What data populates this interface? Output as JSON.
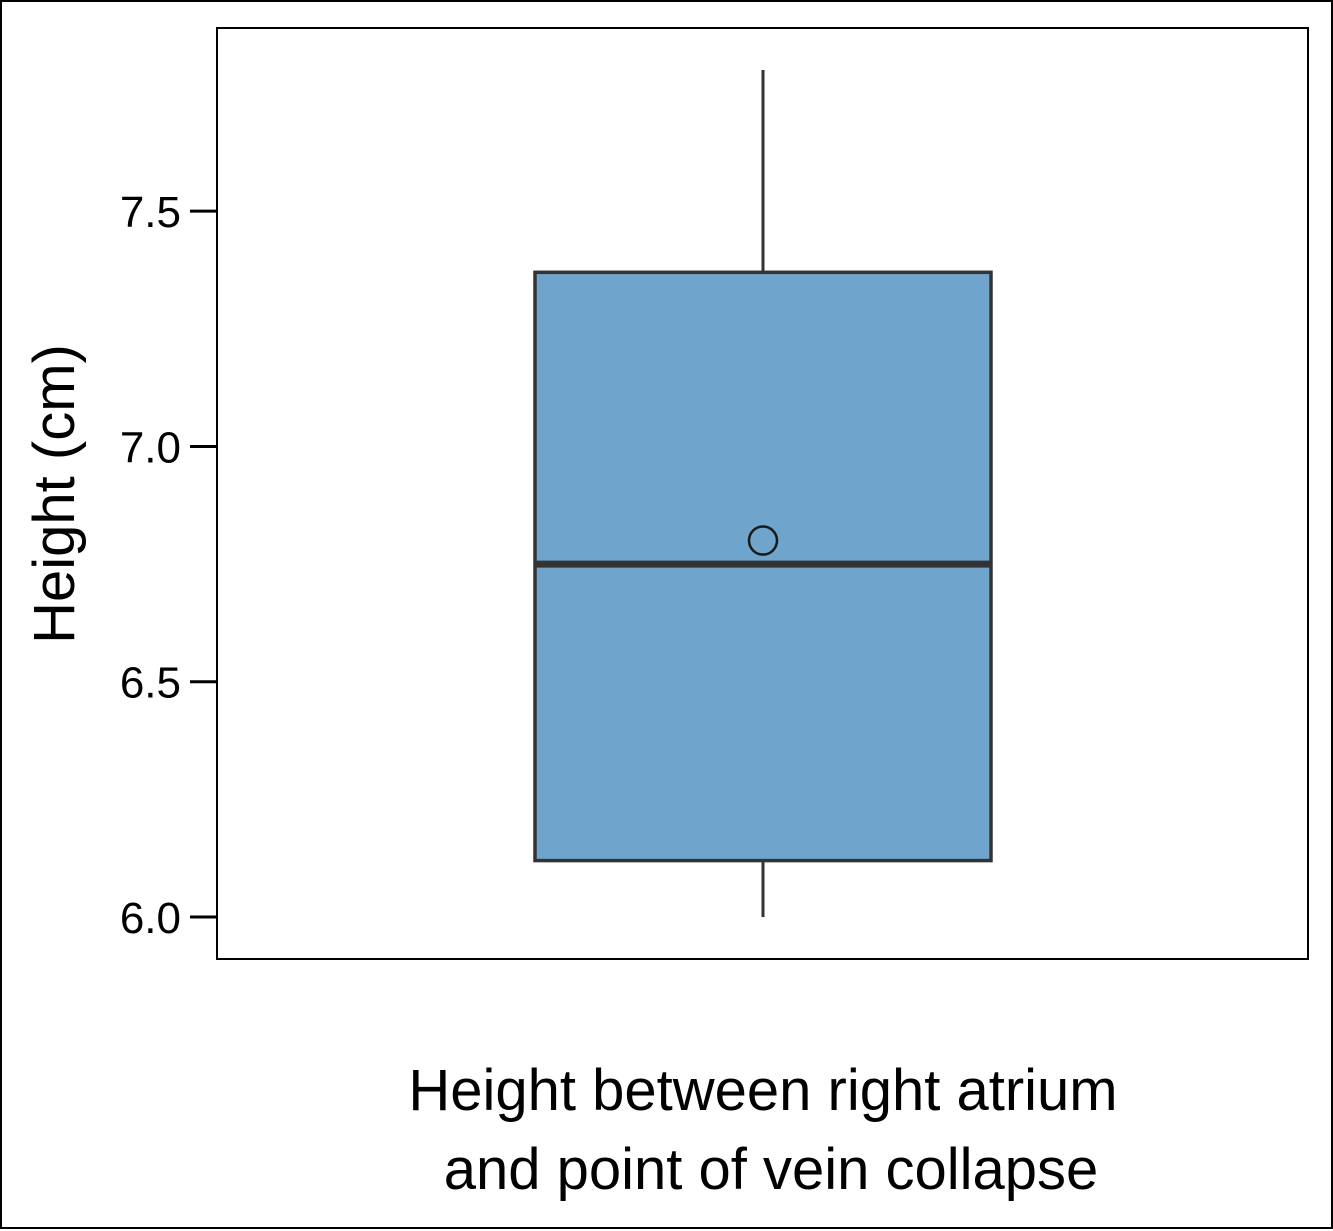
{
  "chart_data": {
    "type": "box",
    "title": "",
    "xlabel_lines": [
      "Height between right atrium",
      "and point of vein collapse"
    ],
    "ylabel": "Height (cm)",
    "ylim": [
      5.913,
      7.887
    ],
    "yticks": [
      6.0,
      6.5,
      7.0,
      7.5
    ],
    "ytick_labels": [
      "6.0",
      "6.5",
      "7.0",
      "7.5"
    ],
    "grid": false,
    "boxes": [
      {
        "whisker_low": 6.0,
        "q1": 6.12,
        "median": 6.75,
        "q3": 7.37,
        "whisker_high": 7.8,
        "mean": 6.8
      }
    ],
    "colors": {
      "box_fill": "#6fa5cc",
      "box_edge": "#333333",
      "axis": "#000000"
    }
  }
}
